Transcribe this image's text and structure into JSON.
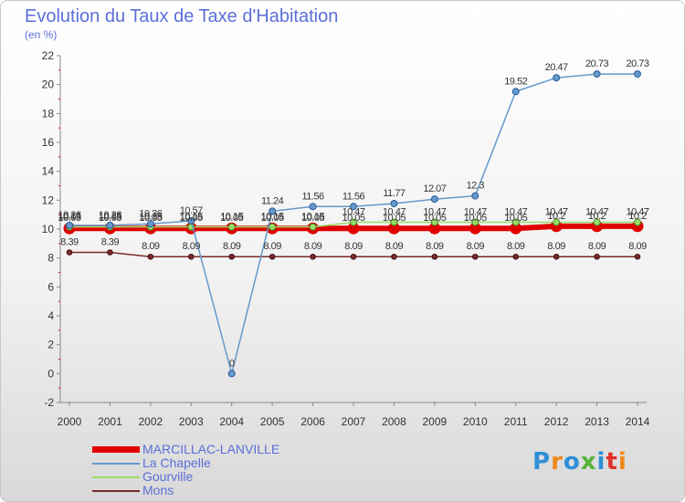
{
  "title": "Evolution du Taux de Taxe d'Habitation",
  "subtitle": "(en %)",
  "logo": {
    "text": "Proxiti",
    "colors": [
      "#2e8fd6",
      "#f08a1c",
      "#2e8fd6",
      "#56b33b",
      "#2e8fd6",
      "#e0302a",
      "#f08a1c"
    ]
  },
  "chart_data": {
    "type": "line",
    "x": [
      "2000",
      "2001",
      "2002",
      "2003",
      "2004",
      "2005",
      "2006",
      "2007",
      "2008",
      "2009",
      "2010",
      "2011",
      "2012",
      "2013",
      "2014"
    ],
    "ylim": [
      -2,
      22
    ],
    "yticks": [
      -2,
      0,
      2,
      4,
      6,
      8,
      10,
      12,
      14,
      16,
      18,
      20,
      22
    ],
    "grid": false,
    "legend_position": "bottom-left",
    "series": [
      {
        "name": "MARCILLAC-LANVILLE",
        "color": "#e00000",
        "values": [
          10.05,
          10.05,
          10.05,
          10.05,
          10.05,
          10.05,
          10.05,
          10.05,
          10.05,
          10.05,
          10.05,
          10.05,
          10.2,
          10.2,
          10.2
        ],
        "labels": [
          "10.05",
          "10.05",
          "10.05",
          "10.05",
          "10.05",
          "10.05",
          "10.05",
          "10.05",
          "10.05",
          "10.05",
          "10.05",
          "10.05",
          "10.2",
          "10.2",
          "10.2"
        ]
      },
      {
        "name": "La Chapelle",
        "color": "#6699cc",
        "values": [
          10.26,
          10.26,
          10.36,
          10.57,
          0,
          11.24,
          11.56,
          11.56,
          11.77,
          12.07,
          12.3,
          19.52,
          20.47,
          20.73,
          20.73
        ],
        "labels": [
          "10.26",
          "10.26",
          "10.36",
          "10.57",
          "0",
          "11.24",
          "11.56",
          "11.56",
          "11.77",
          "12.07",
          "12.3",
          "19.52",
          "20.47",
          "20.73",
          "20.73"
        ]
      },
      {
        "name": "Gourville",
        "color": "#99dd66",
        "values": [
          10.15,
          10.15,
          10.15,
          10.15,
          10.15,
          10.15,
          10.15,
          10.47,
          10.47,
          10.47,
          10.47,
          10.47,
          10.47,
          10.47,
          10.47
        ],
        "labels": [
          "10.15",
          "10.15",
          "10.15",
          "10.15",
          "10.15",
          "10.15",
          "10.15",
          "10.47",
          "10.47",
          "10.47",
          "10.47",
          "10.47",
          "10.47",
          "10.47",
          "10.47"
        ]
      },
      {
        "name": "Mons",
        "color": "#7a2a2a",
        "values": [
          8.39,
          8.39,
          8.09,
          8.09,
          8.09,
          8.09,
          8.09,
          8.09,
          8.09,
          8.09,
          8.09,
          8.09,
          8.09,
          8.09,
          8.09
        ],
        "labels": [
          "8.39",
          "8.39",
          "8.09",
          "8.09",
          "8.09",
          "8.09",
          "8.09",
          "8.09",
          "8.09",
          "8.09",
          "8.09",
          "8.09",
          "8.09",
          "8.09",
          "8.09"
        ]
      }
    ]
  }
}
